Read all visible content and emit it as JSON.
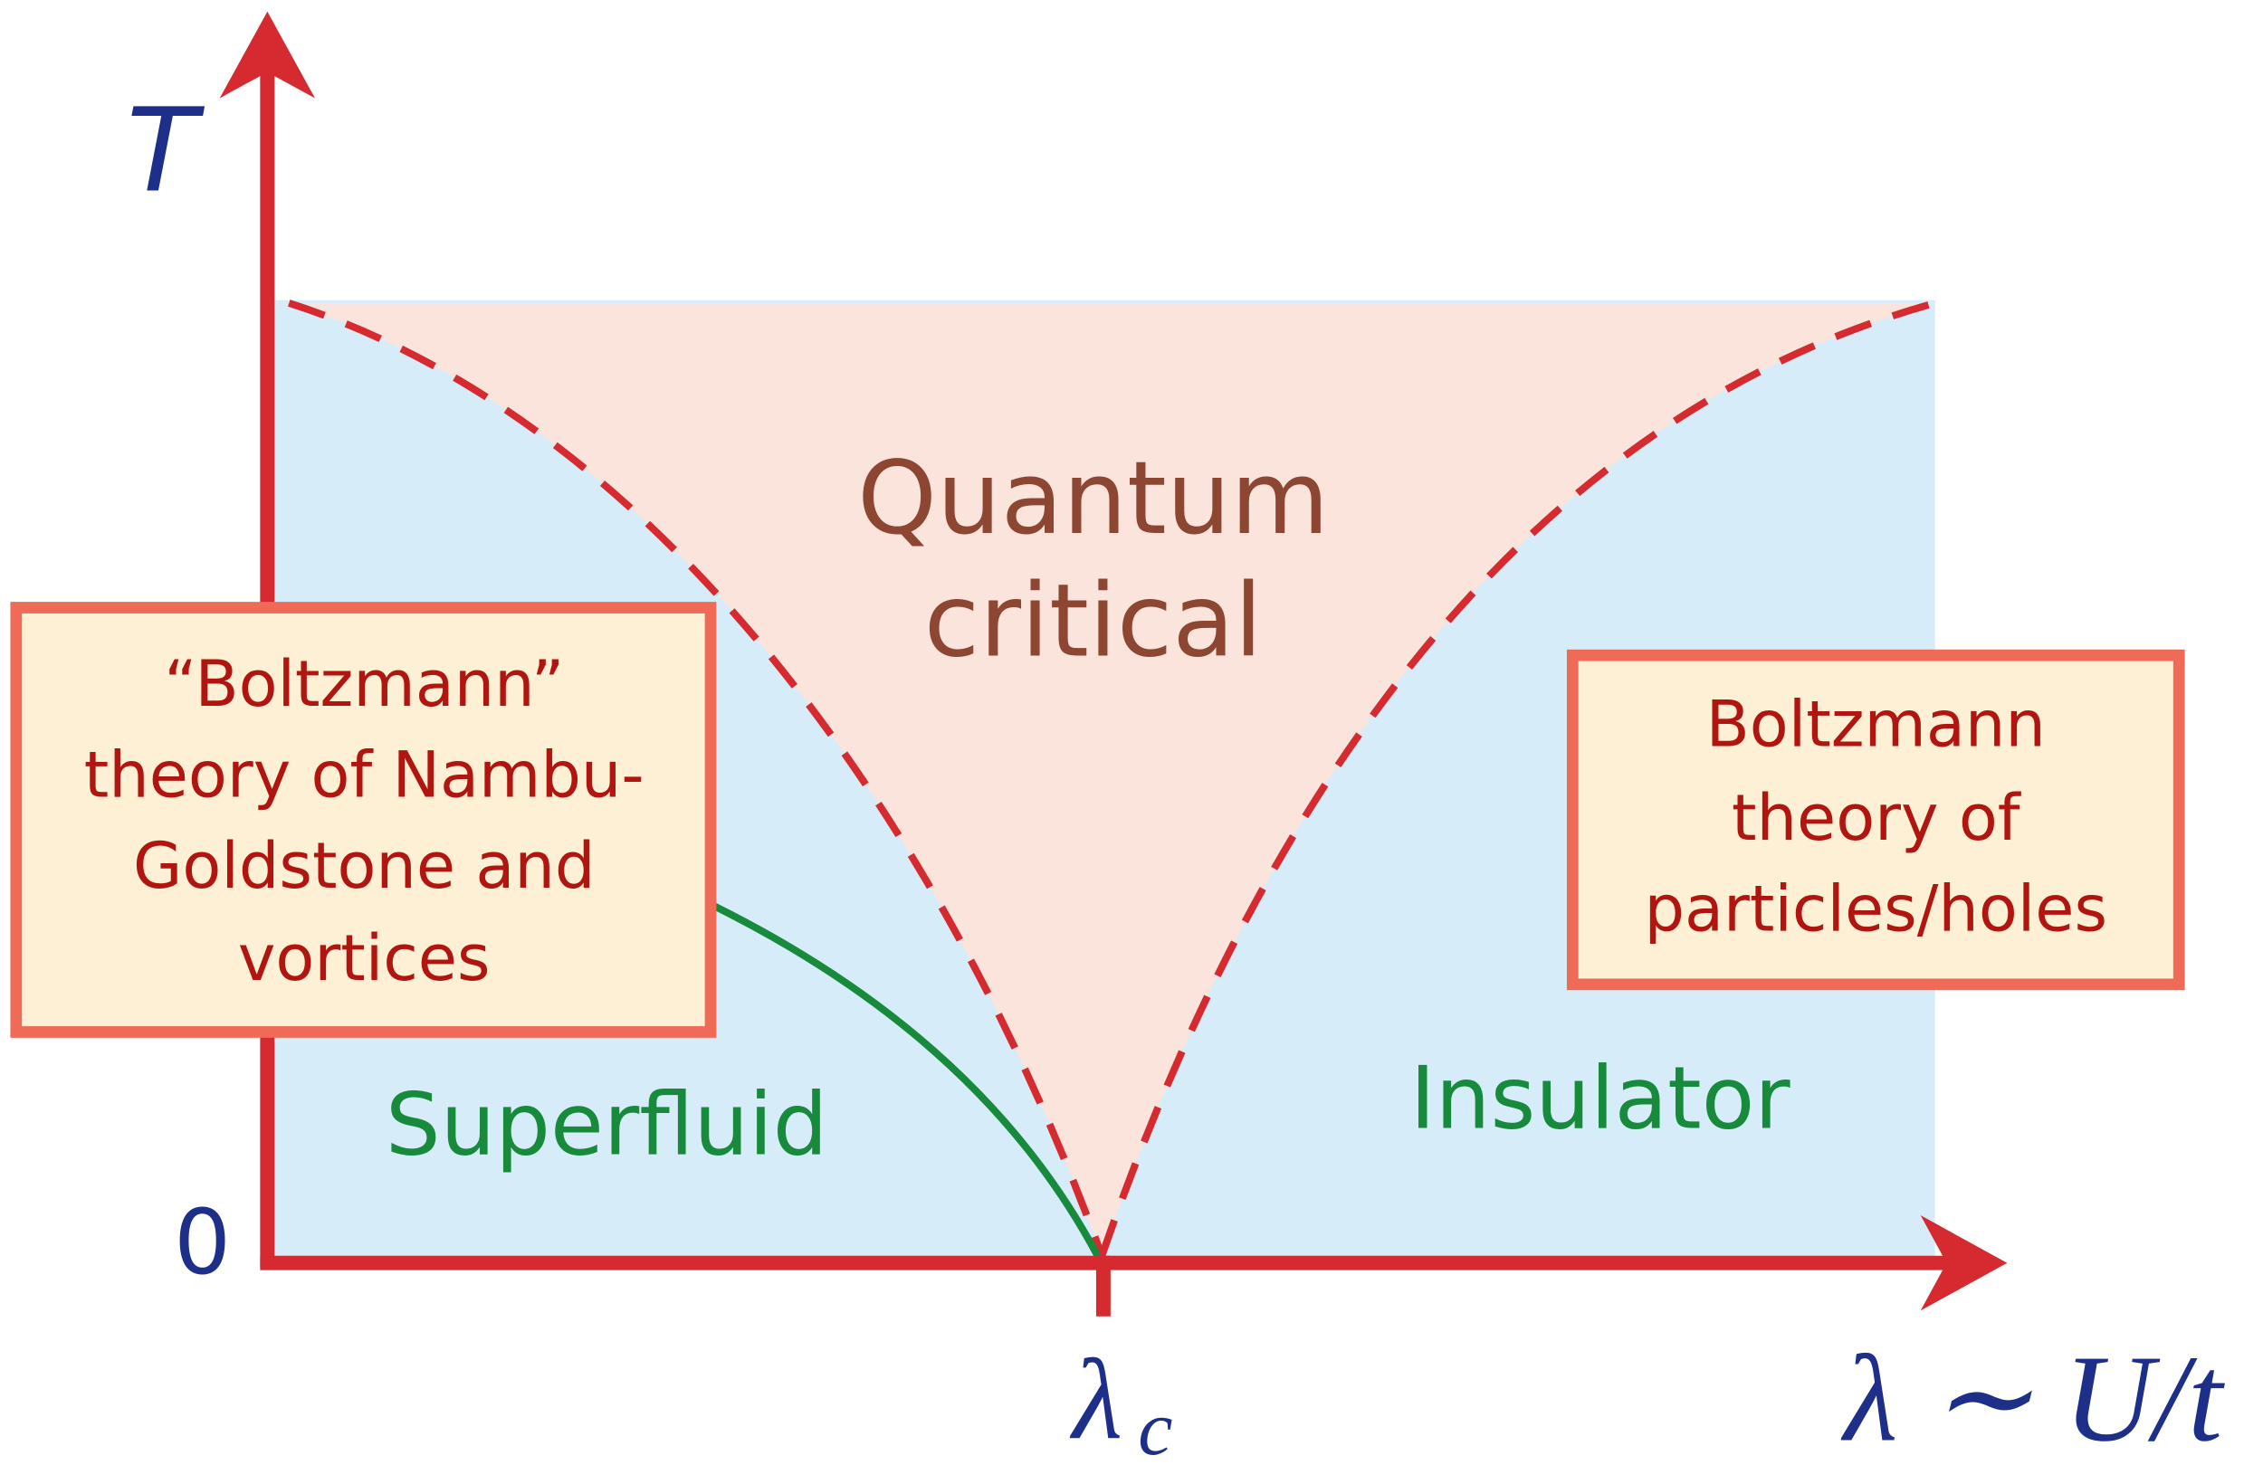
{
  "axes": {
    "y_label": "T",
    "origin_label": "0",
    "critical_symbol": "λ",
    "critical_subscript": "c",
    "x_label": "λ ∼ U/t"
  },
  "regions": {
    "quantum_critical": [
      "Quantum",
      "critical"
    ],
    "superfluid": "Superfluid",
    "insulator": "Insulator"
  },
  "boxes": [
    {
      "lines": [
        "“Boltzmann”",
        "theory of Nambu-",
        "Goldstone and",
        "vortices"
      ]
    },
    {
      "lines": [
        "Boltzmann",
        "theory of",
        "particles/holes"
      ]
    }
  ]
}
